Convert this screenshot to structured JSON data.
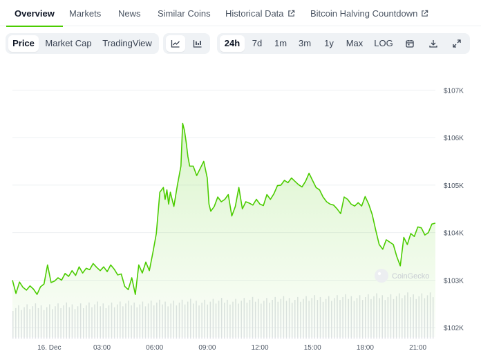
{
  "tabs": [
    {
      "label": "Overview",
      "active": true
    },
    {
      "label": "Markets"
    },
    {
      "label": "News"
    },
    {
      "label": "Similar Coins"
    },
    {
      "label": "Historical Data",
      "external": true
    },
    {
      "label": "Bitcoin Halving Countdown",
      "external": true
    }
  ],
  "toolbar": {
    "chart_modes": [
      "Price",
      "Market Cap",
      "TradingView"
    ],
    "selected_mode": "Price",
    "chart_styles": [
      "line-chart-icon",
      "candlestick-icon"
    ],
    "ranges": [
      "24h",
      "7d",
      "1m",
      "3m",
      "1y",
      "Max",
      "LOG"
    ],
    "selected_range": "24h",
    "action_icons": [
      "calendar-icon",
      "download-icon",
      "expand-icon"
    ]
  },
  "watermark": "CoinGecko",
  "colors": {
    "line": "#4bcc00",
    "accent": "#4bcc00",
    "volume": "#dfe2e6"
  },
  "chart_data": {
    "type": "area",
    "x_ticks": [
      "16. Dec",
      "03:00",
      "06:00",
      "09:00",
      "12:00",
      "15:00",
      "18:00",
      "21:00"
    ],
    "x_tick_hours": [
      0,
      3,
      6,
      9,
      12,
      15,
      18,
      21
    ],
    "y_ticks": [
      "$102K",
      "$103K",
      "$104K",
      "$105K",
      "$106K",
      "$107K"
    ],
    "y_tick_values": [
      102000,
      103000,
      104000,
      105000,
      106000,
      107000
    ],
    "ylim": [
      101800,
      107150
    ],
    "xlim": [
      -2.1,
      22.0
    ],
    "grid": true,
    "series": [
      {
        "x": [
          -2.1,
          -1.9,
          -1.7,
          -1.5,
          -1.3,
          -1.1,
          -0.9,
          -0.7,
          -0.5,
          -0.3,
          -0.1,
          0.1,
          0.3,
          0.5,
          0.7,
          0.9,
          1.1,
          1.3,
          1.5,
          1.7,
          1.9,
          2.1,
          2.3,
          2.5,
          2.7,
          2.9,
          3.1,
          3.3,
          3.5,
          3.7,
          3.9,
          4.1,
          4.3,
          4.5,
          4.7,
          4.9,
          5.1,
          5.3,
          5.5,
          5.7,
          5.9,
          6.1,
          6.3,
          6.5,
          6.6,
          6.7,
          6.8,
          6.9,
          7.1,
          7.3,
          7.5,
          7.6,
          7.7,
          7.8,
          7.9,
          8.0,
          8.2,
          8.4,
          8.6,
          8.8,
          9.0,
          9.1,
          9.2,
          9.4,
          9.6,
          9.8,
          10.0,
          10.2,
          10.4,
          10.6,
          10.8,
          11.0,
          11.2,
          11.4,
          11.6,
          11.8,
          12.0,
          12.2,
          12.4,
          12.6,
          12.8,
          13.0,
          13.2,
          13.4,
          13.6,
          13.8,
          14.0,
          14.2,
          14.4,
          14.6,
          14.8,
          15.0,
          15.2,
          15.4,
          15.6,
          15.8,
          16.0,
          16.2,
          16.4,
          16.6,
          16.8,
          17.0,
          17.2,
          17.4,
          17.6,
          17.8,
          18.0,
          18.2,
          18.4,
          18.6,
          18.8,
          19.0,
          19.2,
          19.4,
          19.6,
          19.8,
          20.0,
          20.2,
          20.4,
          20.6,
          20.8,
          21.0,
          21.2,
          21.4,
          21.6,
          21.8,
          22.0
        ],
        "values": [
          103000,
          102720,
          102960,
          102850,
          102790,
          102880,
          102810,
          102700,
          102860,
          102920,
          103320,
          102950,
          102980,
          103050,
          103000,
          103140,
          103080,
          103200,
          103100,
          103280,
          103150,
          103250,
          103220,
          103350,
          103270,
          103200,
          103280,
          103180,
          103320,
          103230,
          103110,
          103130,
          102870,
          102800,
          103050,
          102700,
          103320,
          103150,
          103380,
          103200,
          103580,
          103980,
          104850,
          104950,
          104700,
          104900,
          104600,
          104850,
          104550,
          105000,
          105400,
          106300,
          106150,
          105900,
          105600,
          105400,
          105400,
          105200,
          105350,
          105500,
          105150,
          104600,
          104450,
          104550,
          104750,
          104650,
          104700,
          104800,
          104350,
          104550,
          104950,
          104500,
          104650,
          104620,
          104580,
          104700,
          104600,
          104570,
          104800,
          104700,
          104820,
          104990,
          105000,
          105100,
          105050,
          105150,
          105080,
          105010,
          104960,
          105080,
          105250,
          105100,
          104950,
          104900,
          104750,
          104650,
          104600,
          104580,
          104500,
          104400,
          104750,
          104700,
          104600,
          104560,
          104630,
          104560,
          104760,
          104600,
          104380,
          104050,
          103750,
          103650,
          103850,
          103800,
          103750,
          103500,
          103300,
          103900,
          103750,
          103980,
          103920,
          104120,
          104100,
          103950,
          104000,
          104180,
          104200
        ]
      }
    ],
    "volume_note": "volume bars shown without axis labels"
  }
}
